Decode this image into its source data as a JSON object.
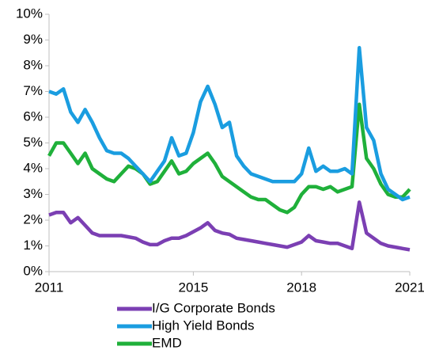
{
  "chart_data": {
    "type": "line",
    "x": [
      2011,
      2011.2,
      2011.4,
      2011.6,
      2011.8,
      2012,
      2012.2,
      2012.4,
      2012.6,
      2012.8,
      2013,
      2013.2,
      2013.4,
      2013.6,
      2013.8,
      2014,
      2014.2,
      2014.4,
      2014.6,
      2014.8,
      2015,
      2015.2,
      2015.4,
      2015.6,
      2015.8,
      2016,
      2016.2,
      2016.4,
      2016.6,
      2016.8,
      2017,
      2017.2,
      2017.4,
      2017.6,
      2017.8,
      2018,
      2018.2,
      2018.4,
      2018.6,
      2018.8,
      2019,
      2019.2,
      2019.4,
      2019.6,
      2019.8,
      2020,
      2020.2,
      2020.4,
      2020.6,
      2020.8,
      2021
    ],
    "series": [
      {
        "name": "I/G Corporate Bonds",
        "color": "#7b3fb3",
        "values": [
          2.2,
          2.3,
          2.3,
          1.9,
          2.1,
          1.8,
          1.5,
          1.4,
          1.4,
          1.4,
          1.4,
          1.35,
          1.3,
          1.15,
          1.05,
          1.05,
          1.2,
          1.3,
          1.3,
          1.4,
          1.55,
          1.7,
          1.9,
          1.6,
          1.5,
          1.45,
          1.3,
          1.25,
          1.2,
          1.15,
          1.1,
          1.05,
          1.0,
          0.95,
          1.05,
          1.15,
          1.4,
          1.2,
          1.15,
          1.1,
          1.1,
          1.0,
          0.9,
          2.7,
          1.5,
          1.3,
          1.1,
          1.0,
          0.95,
          0.9,
          0.85
        ]
      },
      {
        "name": "High Yield Bonds",
        "color": "#1a9de0",
        "values": [
          7.0,
          6.9,
          7.1,
          6.2,
          5.8,
          6.3,
          5.8,
          5.2,
          4.7,
          4.6,
          4.6,
          4.4,
          4.1,
          3.8,
          3.5,
          3.9,
          4.3,
          5.2,
          4.5,
          4.6,
          5.4,
          6.6,
          7.2,
          6.5,
          5.6,
          5.8,
          4.5,
          4.1,
          3.8,
          3.7,
          3.6,
          3.5,
          3.5,
          3.5,
          3.5,
          3.8,
          4.8,
          3.9,
          4.1,
          3.9,
          3.9,
          4.0,
          3.8,
          8.7,
          5.6,
          5.1,
          3.8,
          3.2,
          3.0,
          2.8,
          2.9
        ]
      },
      {
        "name": "EMD",
        "color": "#1fb03a",
        "values": [
          4.5,
          5.0,
          5.0,
          4.6,
          4.2,
          4.6,
          4.0,
          3.8,
          3.6,
          3.5,
          3.8,
          4.1,
          4.0,
          3.8,
          3.4,
          3.5,
          3.9,
          4.3,
          3.8,
          3.9,
          4.2,
          4.4,
          4.6,
          4.2,
          3.7,
          3.5,
          3.3,
          3.1,
          2.9,
          2.8,
          2.8,
          2.6,
          2.4,
          2.3,
          2.5,
          3.0,
          3.3,
          3.3,
          3.2,
          3.3,
          3.1,
          3.2,
          3.3,
          6.5,
          4.4,
          4.0,
          3.4,
          3.0,
          2.9,
          2.9,
          3.2
        ]
      }
    ],
    "xlim": [
      2011,
      2021
    ],
    "xticks": [
      2011,
      2015,
      2018,
      2021
    ],
    "ylim": [
      0,
      10
    ],
    "yticks": [
      {
        "value": 0,
        "label": "0%"
      },
      {
        "value": 1,
        "label": "1%"
      },
      {
        "value": 2,
        "label": "2%"
      },
      {
        "value": 3,
        "label": "3%"
      },
      {
        "value": 4,
        "label": "4%"
      },
      {
        "value": 5,
        "label": "5%"
      },
      {
        "value": 6,
        "label": "6%"
      },
      {
        "value": 7,
        "label": "7%"
      },
      {
        "value": 8,
        "label": "8%"
      },
      {
        "value": 9,
        "label": "9%"
      },
      {
        "value": 10,
        "label": "10%"
      }
    ],
    "grid": false
  }
}
